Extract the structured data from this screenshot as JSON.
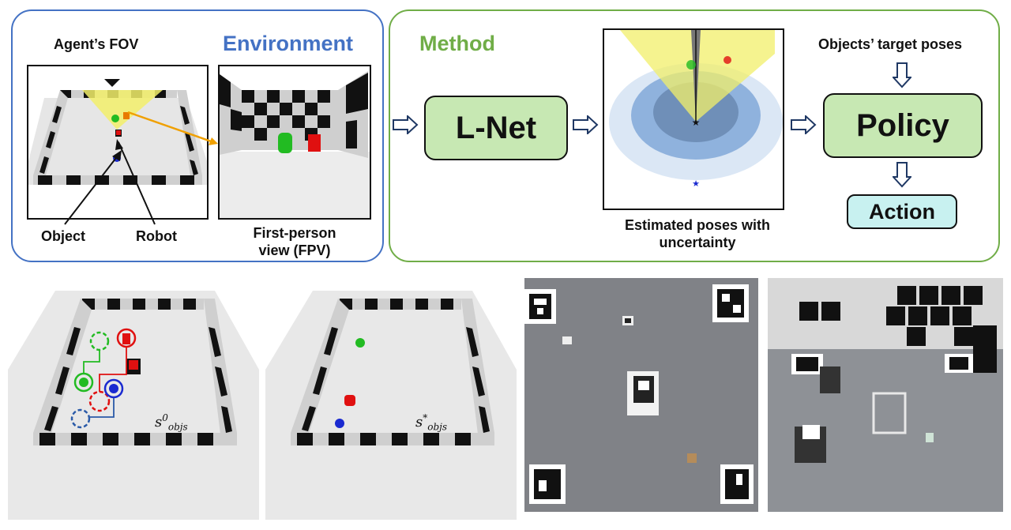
{
  "environment": {
    "title": "Environment",
    "fov_label": "Agent’s FOV",
    "object_label": "Object",
    "robot_label": "Robot",
    "fpv_label_line1": "First-person",
    "fpv_label_line2": "view (FPV)"
  },
  "method": {
    "title": "Method",
    "lnet_label": "L-Net",
    "estimated_label_line1": "Estimated poses with",
    "estimated_label_line2": "uncertainty",
    "target_label": "Objects’ target poses",
    "policy_label": "Policy",
    "action_label": "Action"
  },
  "bottom": {
    "initial_state_label": "s",
    "initial_state_sup": "0",
    "initial_state_sub": "objs",
    "goal_state_label": "s",
    "goal_state_sup": "*",
    "goal_state_sub": "objs"
  },
  "colors": {
    "env_border": "#4472c4",
    "method_border": "#70ad47",
    "box_fill": "#c7e8b3",
    "action_fill": "#c8f1f0",
    "object_green": "#22bb22",
    "object_red": "#e01010",
    "object_blue": "#1a2ad0",
    "fov_yellow": "#f2ef6a"
  },
  "icons": [
    "arrow-right-icon",
    "arrow-down-icon"
  ]
}
